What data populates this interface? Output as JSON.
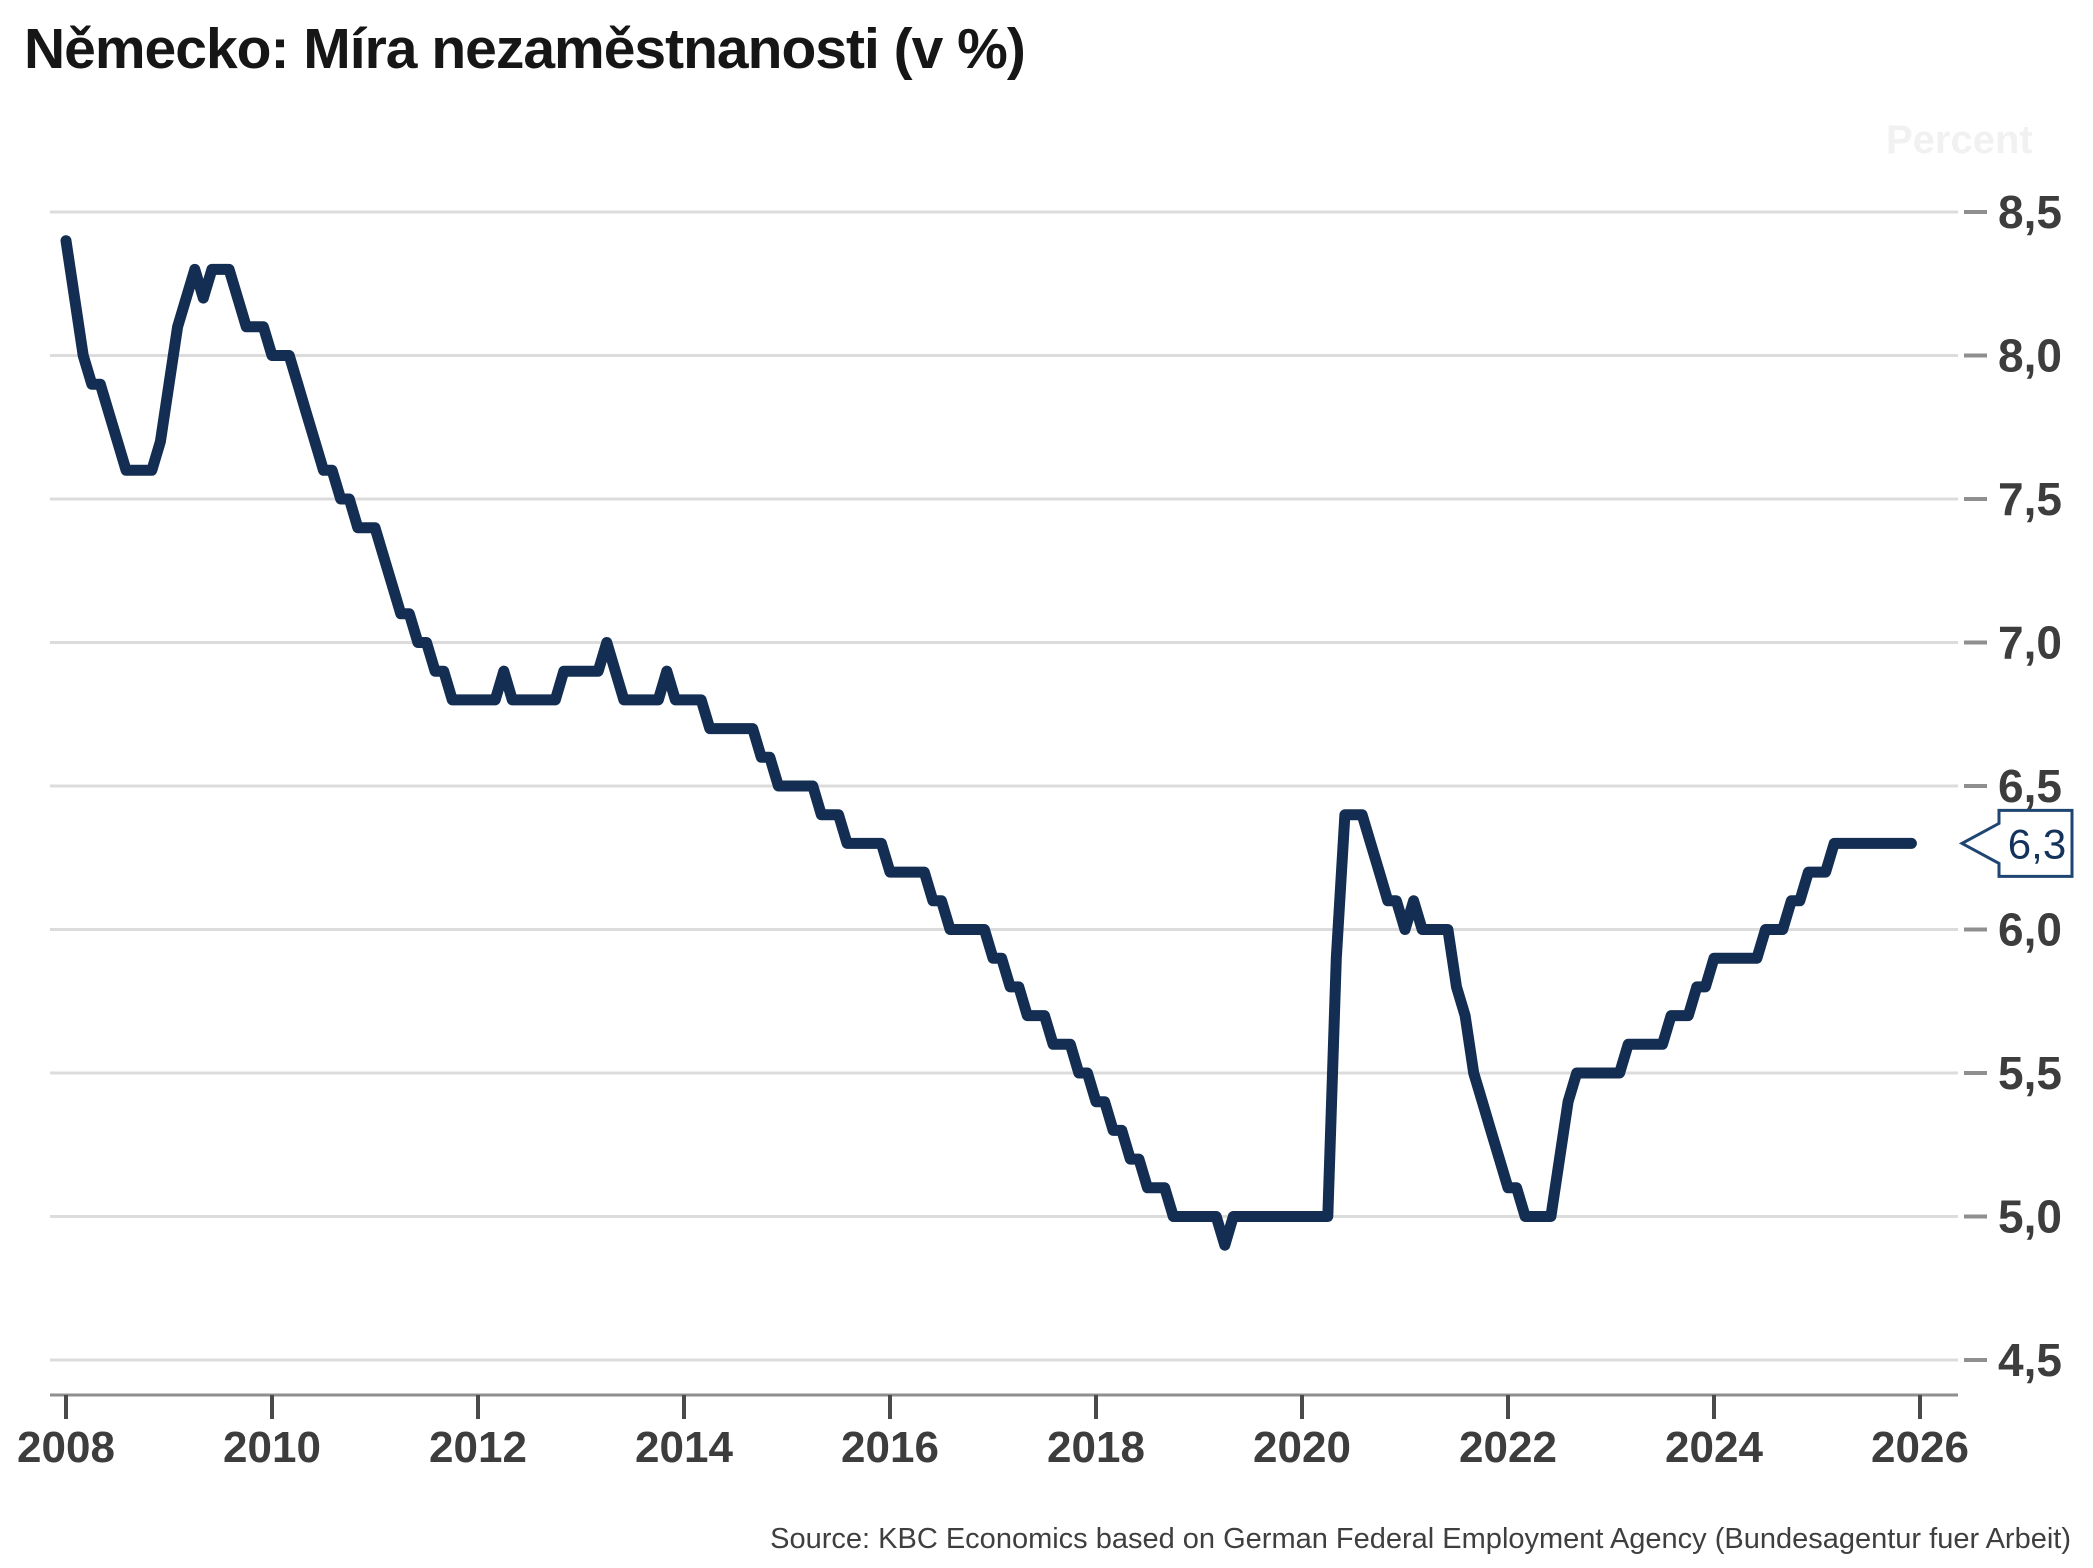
{
  "title": "Německo: Míra nezaměstnanosti (v %)",
  "watermark": "Percent",
  "source": "Source: KBC Economics based on German Federal Employment Agency (Bundesagentur fuer Arbeit)",
  "callout": {
    "label": "6,3"
  },
  "colors": {
    "line": "#132e52",
    "grid": "#dcdcdc",
    "axis_line": "#8f8f8f",
    "tick": "#4a4a4a",
    "label": "#3d3d3d",
    "callout_border": "#1f4572",
    "callout_text": "#14335c",
    "watermark": "#f1f1f1"
  },
  "chart_data": {
    "type": "line",
    "title": "Německo: Míra nezaměstnanosti (v %)",
    "series_name": "Míra nezaměstnanosti (%)",
    "frequency": "monthly",
    "x_start": "2008-01",
    "x_end": "2025-12",
    "xlabel": "",
    "ylabel": "Percent",
    "ylim": [
      4.5,
      8.5
    ],
    "grid": "horizontal",
    "legend": "none",
    "x_tick_labels": [
      "2008",
      "2010",
      "2012",
      "2014",
      "2016",
      "2018",
      "2020",
      "2022",
      "2024",
      "2026"
    ],
    "y_tick_labels": [
      "8,5",
      "8,0",
      "7,5",
      "7,0",
      "6,5",
      "6,0",
      "5,5",
      "5,0",
      "4,5"
    ],
    "y_tick_values": [
      8.5,
      8.0,
      7.5,
      7.0,
      6.5,
      6.0,
      5.5,
      5.0,
      4.5
    ],
    "last_value_label": "6,3",
    "last_value": 6.3,
    "values": [
      8.4,
      8.2,
      8.0,
      7.9,
      7.9,
      7.8,
      7.7,
      7.6,
      7.6,
      7.6,
      7.6,
      7.7,
      7.9,
      8.1,
      8.2,
      8.3,
      8.2,
      8.3,
      8.3,
      8.3,
      8.2,
      8.1,
      8.1,
      8.1,
      8.0,
      8.0,
      8.0,
      7.9,
      7.8,
      7.7,
      7.6,
      7.6,
      7.5,
      7.5,
      7.4,
      7.4,
      7.4,
      7.3,
      7.2,
      7.1,
      7.1,
      7.0,
      7.0,
      6.9,
      6.9,
      6.8,
      6.8,
      6.8,
      6.8,
      6.8,
      6.8,
      6.9,
      6.8,
      6.8,
      6.8,
      6.8,
      6.8,
      6.8,
      6.9,
      6.9,
      6.9,
      6.9,
      6.9,
      7.0,
      6.9,
      6.8,
      6.8,
      6.8,
      6.8,
      6.8,
      6.9,
      6.8,
      6.8,
      6.8,
      6.8,
      6.7,
      6.7,
      6.7,
      6.7,
      6.7,
      6.7,
      6.6,
      6.6,
      6.5,
      6.5,
      6.5,
      6.5,
      6.5,
      6.4,
      6.4,
      6.4,
      6.3,
      6.3,
      6.3,
      6.3,
      6.3,
      6.2,
      6.2,
      6.2,
      6.2,
      6.2,
      6.1,
      6.1,
      6.0,
      6.0,
      6.0,
      6.0,
      6.0,
      5.9,
      5.9,
      5.8,
      5.8,
      5.7,
      5.7,
      5.7,
      5.6,
      5.6,
      5.6,
      5.5,
      5.5,
      5.4,
      5.4,
      5.3,
      5.3,
      5.2,
      5.2,
      5.1,
      5.1,
      5.1,
      5.0,
      5.0,
      5.0,
      5.0,
      5.0,
      5.0,
      4.9,
      5.0,
      5.0,
      5.0,
      5.0,
      5.0,
      5.0,
      5.0,
      5.0,
      5.0,
      5.0,
      5.0,
      5.0,
      5.9,
      6.4,
      6.4,
      6.4,
      6.3,
      6.2,
      6.1,
      6.1,
      6.0,
      6.1,
      6.0,
      6.0,
      6.0,
      6.0,
      5.8,
      5.7,
      5.5,
      5.4,
      5.3,
      5.2,
      5.1,
      5.1,
      5.0,
      5.0,
      5.0,
      5.0,
      5.2,
      5.4,
      5.5,
      5.5,
      5.5,
      5.5,
      5.5,
      5.5,
      5.6,
      5.6,
      5.6,
      5.6,
      5.6,
      5.7,
      5.7,
      5.7,
      5.8,
      5.8,
      5.9,
      5.9,
      5.9,
      5.9,
      5.9,
      5.9,
      6.0,
      6.0,
      6.0,
      6.1,
      6.1,
      6.2,
      6.2,
      6.2,
      6.3,
      6.3,
      6.3,
      6.3,
      6.3,
      6.3,
      6.3,
      6.3,
      6.3,
      6.3
    ]
  }
}
